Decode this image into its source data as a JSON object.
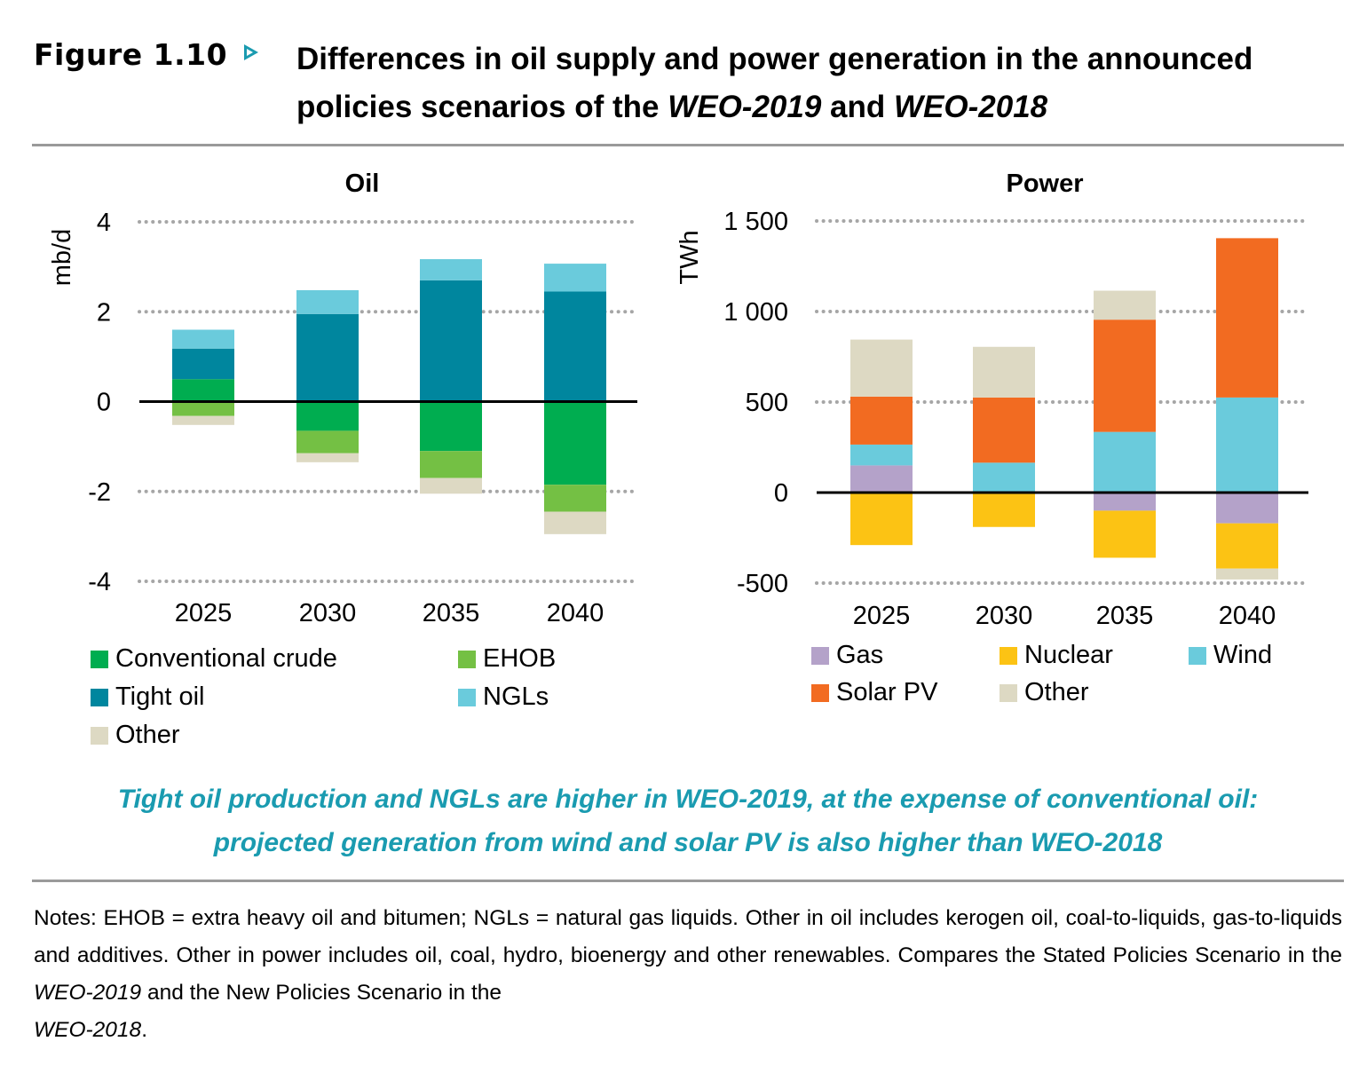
{
  "header": {
    "figure_label": "Figure 1.10",
    "title_line1": "Differences in oil supply and power generation in the announced",
    "title_line2_a": "policies scenarios of the ",
    "title_line2_b": "WEO-2019",
    "title_line2_c": " and ",
    "title_line2_d": "WEO-2018"
  },
  "chart_data": [
    {
      "type": "bar",
      "stacked": true,
      "title": "Oil",
      "ylabel": "mb/d",
      "xlabel": "",
      "categories": [
        "2025",
        "2030",
        "2035",
        "2040"
      ],
      "ylim": [
        -4,
        4
      ],
      "yticks": [
        4,
        2,
        0,
        -2,
        -4
      ],
      "ytick_labels": [
        "4",
        "2",
        "0",
        "-2",
        "-4"
      ],
      "grid": true,
      "series": [
        {
          "name": "Conventional crude",
          "color": "#00ad50",
          "values": [
            0.5,
            -0.65,
            -1.1,
            -1.85
          ]
        },
        {
          "name": "EHOB",
          "color": "#74c044",
          "values": [
            -0.32,
            -0.5,
            -0.6,
            -0.6
          ]
        },
        {
          "name": "Tight oil",
          "color": "#00869e",
          "values": [
            0.68,
            1.95,
            2.7,
            2.45
          ]
        },
        {
          "name": "NGLs",
          "color": "#6acbdc",
          "values": [
            0.42,
            0.53,
            0.47,
            0.62
          ]
        },
        {
          "name": "Other",
          "color": "#ddd9c3",
          "values": [
            -0.2,
            -0.2,
            -0.35,
            -0.5
          ]
        }
      ]
    },
    {
      "type": "bar",
      "stacked": true,
      "title": "Power",
      "ylabel": "TWh",
      "xlabel": "",
      "categories": [
        "2025",
        "2030",
        "2035",
        "2040"
      ],
      "ylim": [
        -500,
        1500
      ],
      "yticks": [
        1500,
        1000,
        500,
        0,
        -500
      ],
      "ytick_labels": [
        "1 500",
        "1 000",
        "500",
        "0",
        "-500"
      ],
      "grid": true,
      "series": [
        {
          "name": "Gas",
          "color": "#b4a2c9",
          "values": [
            150,
            0,
            -100,
            -170
          ]
        },
        {
          "name": "Nuclear",
          "color": "#fcc314",
          "values": [
            -290,
            -190,
            -260,
            -250
          ]
        },
        {
          "name": "Wind",
          "color": "#6acbdc",
          "values": [
            115,
            165,
            335,
            525
          ]
        },
        {
          "name": "Solar PV",
          "color": "#f26b21",
          "values": [
            265,
            360,
            620,
            880
          ]
        },
        {
          "name": "Other",
          "color": "#ddd9c3",
          "values": [
            315,
            280,
            160,
            -60
          ]
        }
      ]
    }
  ],
  "oil_legend": [
    {
      "label": "Conventional crude",
      "color": "#00ad50"
    },
    {
      "label": "EHOB",
      "color": "#74c044"
    },
    {
      "label": "Tight oil",
      "color": "#00869e"
    },
    {
      "label": "NGLs",
      "color": "#6acbdc"
    },
    {
      "label": "Other",
      "color": "#ddd9c3"
    }
  ],
  "power_legend": [
    {
      "label": "Gas",
      "color": "#b4a2c9"
    },
    {
      "label": "Nuclear",
      "color": "#fcc314"
    },
    {
      "label": "Wind",
      "color": "#6acbdc"
    },
    {
      "label": "Solar PV",
      "color": "#f26b21"
    },
    {
      "label": "Other",
      "color": "#ddd9c3"
    }
  ],
  "caption": {
    "line1": "Tight oil production and NGLs are higher in WEO-2019, at the expense of conventional oil:",
    "line2": "projected generation from wind and solar PV is also higher than WEO-2018"
  },
  "notes": {
    "part1": "Notes: EHOB = extra heavy oil and bitumen; NGLs = natural gas liquids. Other in oil includes kerogen oil, coal-to-liquids, gas-to-liquids and additives. Other in power includes oil, coal, hydro, bioenergy and other renewables. Compares the Stated Policies Scenario in the ",
    "part2": "WEO-2019",
    "part3": " and the New Policies Scenario in the ",
    "part4": "WEO-2018",
    "part5": "."
  },
  "colors": {
    "accent": "#1a9bb0",
    "rule": "#9a9a9a",
    "gridline": "#a6a6a6",
    "zero_line": "#000000"
  }
}
